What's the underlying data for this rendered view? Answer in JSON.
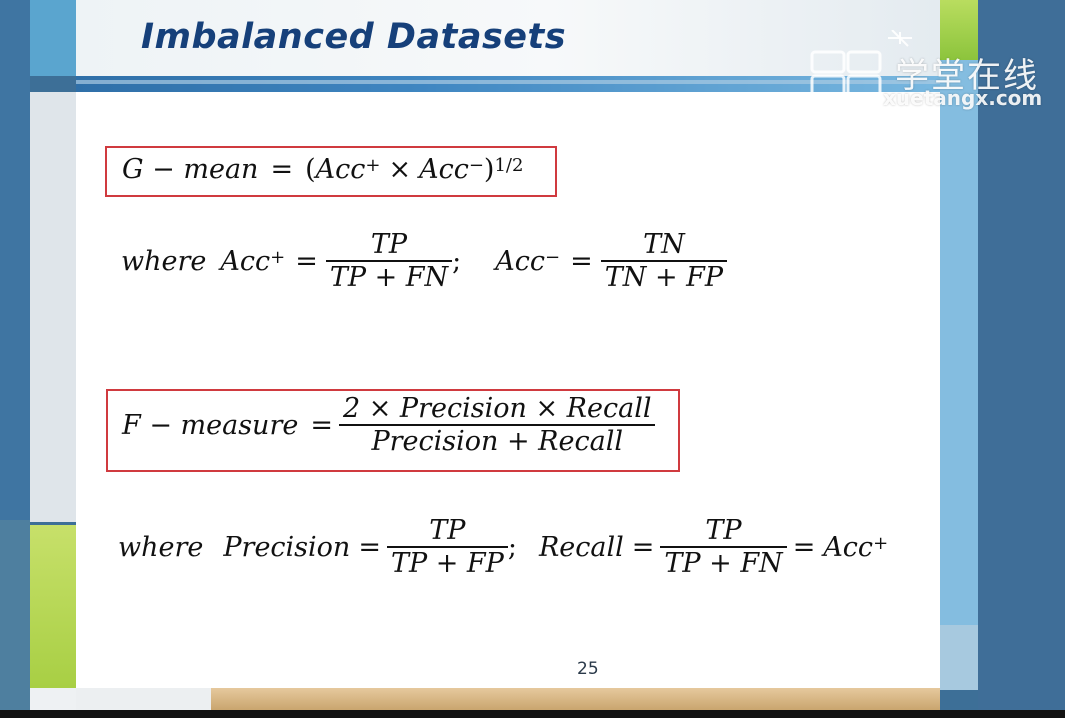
{
  "slide": {
    "title": "Imbalanced Datasets",
    "page_number": "25"
  },
  "watermark": {
    "brand": "学堂在线",
    "url": "xuetangx.com"
  },
  "formulas": {
    "gmean": {
      "lhs": "G − mean",
      "eq": "=",
      "open": "(",
      "acc": "Acc",
      "plus": "+",
      "times": "×",
      "acc2": "Acc",
      "minus": "−",
      "close": ")",
      "exp": "1/2"
    },
    "acc_def": {
      "where": "where",
      "acc_pos": "Acc",
      "plus": "+",
      "eq": "=",
      "num1": "TP",
      "den1": "TP + FN",
      "sep": ";",
      "acc_neg": "Acc",
      "minus": "−",
      "eq2": "=",
      "num2": "TN",
      "den2": "TN + FP"
    },
    "fmeasure": {
      "lhs": "F − measure",
      "eq": "=",
      "num": "2 × Precision × Recall",
      "den": "Precision + Recall"
    },
    "prec_def": {
      "where": "where",
      "precision": "Precision",
      "eq": "=",
      "num1": "TP",
      "den1": "TP + FP",
      "sep": ";",
      "recall": "Recall",
      "eq2": "=",
      "num2": "TP",
      "den2": "TP + FN",
      "eq3": "=",
      "acc": "Acc",
      "plus": "+"
    }
  },
  "colors": {
    "title": "#16407a",
    "box_border": "#d03a3f",
    "rule": "#2f6fa8"
  }
}
